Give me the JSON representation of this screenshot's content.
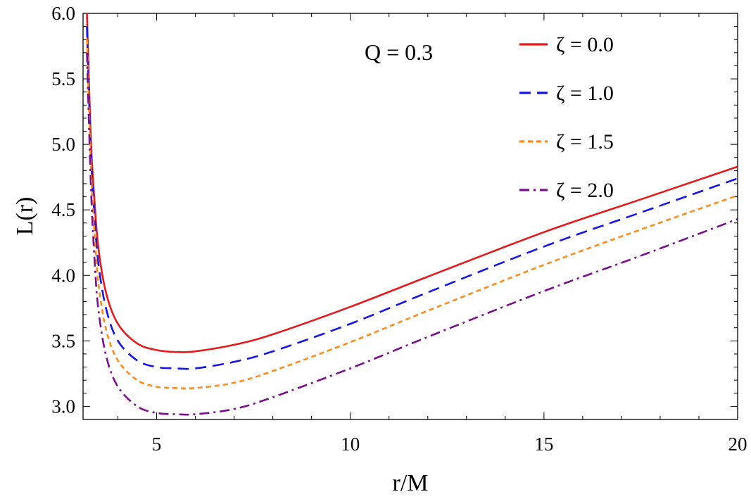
{
  "chart_data": {
    "type": "line",
    "xlabel": "r/M",
    "ylabel": "L(r)",
    "xlim": [
      3.1,
      20
    ],
    "ylim": [
      2.9,
      6.0
    ],
    "x_ticks": [
      5,
      10,
      15,
      20
    ],
    "y_ticks": [
      "3.0",
      "3.5",
      "4.0",
      "4.5",
      "5.0",
      "5.5",
      "6.0"
    ],
    "annotation": "Q = 0.3",
    "grid": false,
    "legend_position": "top-right",
    "series": [
      {
        "name": "ζ = 0.0",
        "color": "#e41a1c",
        "dash": "solid",
        "x": [
          3.2,
          3.3,
          3.4,
          3.5,
          3.7,
          4.0,
          4.5,
          5.0,
          5.5,
          6.0,
          7.0,
          8.0,
          10.0,
          12.0,
          15.0,
          17.5,
          20.0
        ],
        "y": [
          6.0,
          5.05,
          4.55,
          4.2,
          3.86,
          3.63,
          3.48,
          3.43,
          3.415,
          3.42,
          3.47,
          3.55,
          3.76,
          3.99,
          4.33,
          4.58,
          4.83
        ]
      },
      {
        "name": "ζ = 1.0",
        "color": "#1515e6",
        "dash": "long-dash",
        "x": [
          3.2,
          3.3,
          3.4,
          3.5,
          3.7,
          4.0,
          4.5,
          5.0,
          5.5,
          6.0,
          7.0,
          8.0,
          10.0,
          12.0,
          15.0,
          17.5,
          20.0
        ],
        "y": [
          5.9,
          4.95,
          4.43,
          4.08,
          3.74,
          3.5,
          3.35,
          3.3,
          3.29,
          3.29,
          3.34,
          3.42,
          3.63,
          3.87,
          4.22,
          4.48,
          4.74
        ]
      },
      {
        "name": "ζ = 1.5",
        "color": "#ff8c1a",
        "dash": "short-dash",
        "x": [
          3.2,
          3.3,
          3.4,
          3.5,
          3.7,
          4.0,
          4.5,
          5.0,
          5.5,
          6.0,
          7.0,
          8.0,
          10.0,
          12.0,
          15.0,
          17.5,
          20.0
        ],
        "y": [
          5.8,
          4.85,
          4.3,
          3.93,
          3.58,
          3.35,
          3.2,
          3.15,
          3.14,
          3.14,
          3.18,
          3.27,
          3.49,
          3.73,
          4.08,
          4.35,
          4.61
        ]
      },
      {
        "name": "ζ = 2.0",
        "color": "#7a0f8c",
        "dash": "dash-dot",
        "x": [
          3.2,
          3.3,
          3.4,
          3.5,
          3.7,
          4.0,
          4.5,
          5.0,
          5.5,
          6.0,
          7.0,
          8.0,
          10.0,
          12.0,
          15.0,
          17.5,
          20.0
        ],
        "y": [
          5.7,
          4.7,
          4.1,
          3.73,
          3.38,
          3.15,
          3.0,
          2.95,
          2.94,
          2.94,
          2.98,
          3.07,
          3.29,
          3.53,
          3.88,
          4.15,
          4.43
        ]
      }
    ]
  }
}
